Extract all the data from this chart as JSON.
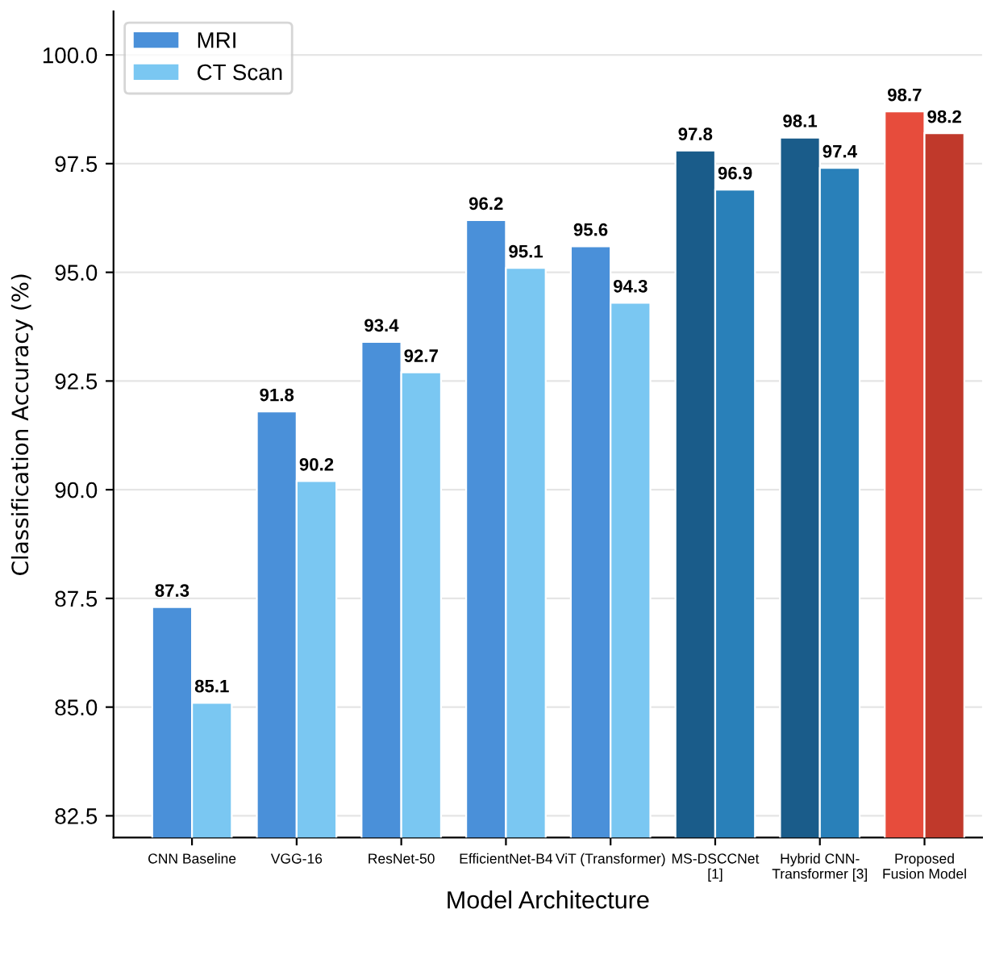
{
  "chart_data": {
    "type": "bar",
    "xlabel": "Model Architecture",
    "ylabel": "Classification Accuracy (%)",
    "categories": [
      "CNN Baseline",
      "VGG-16",
      "ResNet-50",
      "EfficientNet-B4",
      "ViT (Transformer)",
      "MS-DSCCNet\n[1]",
      "Hybrid CNN-\nTransformer [3]",
      "Proposed\nFusion Model"
    ],
    "series": [
      {
        "name": "MRI",
        "color": "#4a90d9",
        "colors": [
          "#4a90d9",
          "#4a90d9",
          "#4a90d9",
          "#4a90d9",
          "#4a90d9",
          "#1a5c8a",
          "#1a5c8a",
          "#e74c3c"
        ],
        "values": [
          87.3,
          91.8,
          93.4,
          96.2,
          95.6,
          97.8,
          98.1,
          98.7
        ]
      },
      {
        "name": "CT Scan",
        "color": "#7ac7f2",
        "colors": [
          "#7ac7f2",
          "#7ac7f2",
          "#7ac7f2",
          "#7ac7f2",
          "#7ac7f2",
          "#2980b9",
          "#2980b9",
          "#c0392b"
        ],
        "values": [
          85.1,
          90.2,
          92.7,
          95.1,
          94.3,
          96.9,
          97.4,
          98.2
        ]
      }
    ],
    "ylim": [
      82.0,
      101.0
    ],
    "yticks": [
      {
        "value": 82.5,
        "label": "82.5"
      },
      {
        "value": 85,
        "label": "85.0"
      },
      {
        "value": 87.5,
        "label": "87.5"
      },
      {
        "value": 90,
        "label": "90.0"
      },
      {
        "value": 92.5,
        "label": "92.5"
      },
      {
        "value": 95,
        "label": "95.0"
      },
      {
        "value": 97.5,
        "label": "97.5"
      },
      {
        "value": 100,
        "label": "100.0"
      }
    ],
    "grid": "y",
    "legend": "top left",
    "data_labels": true
  }
}
